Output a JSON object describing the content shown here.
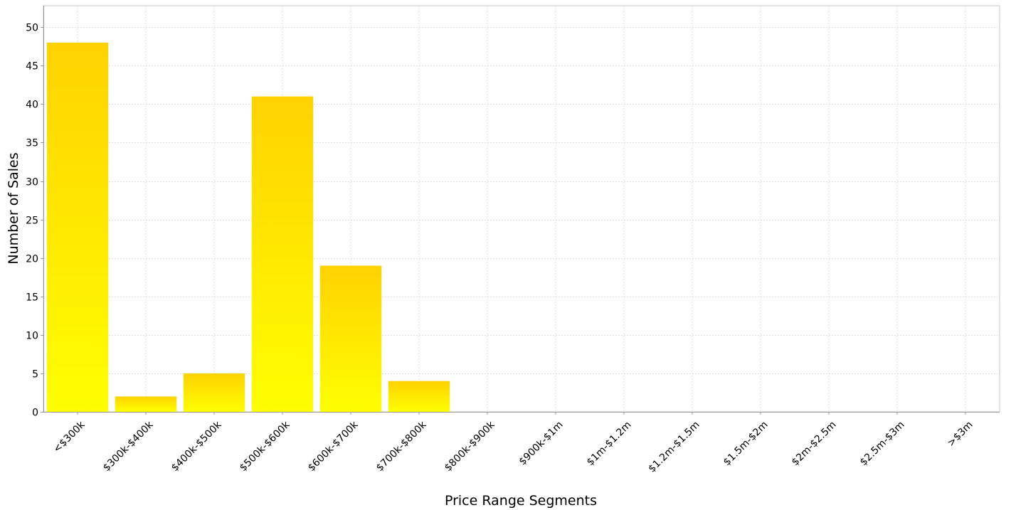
{
  "chart_data": {
    "type": "bar",
    "title": "",
    "xlabel": "Price Range Segments",
    "ylabel": "Number of Sales",
    "categories": [
      "<$300k",
      "$300k-$400k",
      "$400k-$500k",
      "$500k-$600k",
      "$600k-$700k",
      "$700k-$800k",
      "$800k-$900k",
      "$900k-$1m",
      "$1m-$1.2m",
      "$1.2m-$1.5m",
      "$1.5m-$2m",
      "$2m-$2.5m",
      "$2.5m-$3m",
      ">$3m"
    ],
    "values": [
      48,
      2,
      5,
      41,
      19,
      4,
      0,
      0,
      0,
      0,
      0,
      0,
      0,
      0
    ],
    "ylim": [
      0,
      52.8
    ],
    "yticks": [
      0,
      5,
      10,
      15,
      20,
      25,
      30,
      35,
      40,
      45,
      50
    ],
    "grid": true,
    "legend": "none",
    "colors": {
      "bar_top": "#FFD200",
      "bar_bottom": "#FFFF00",
      "grid": "#e2e2e2",
      "frame": "#c8c8c8",
      "axis": "#999999"
    }
  }
}
